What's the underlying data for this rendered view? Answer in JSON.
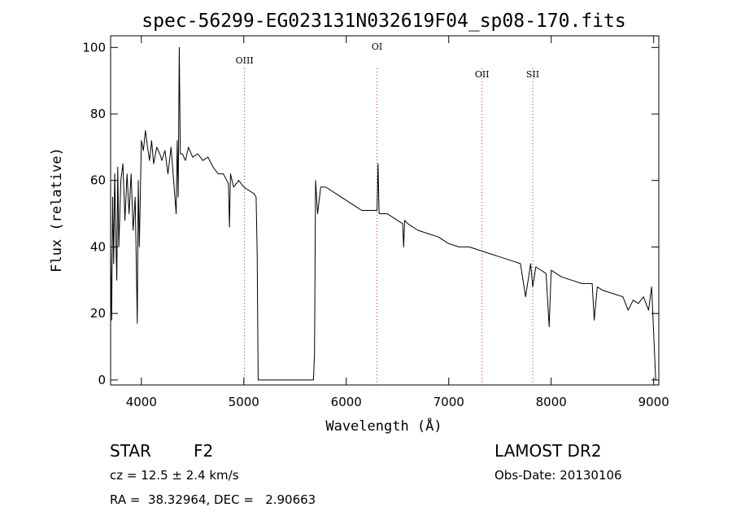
{
  "chart_data": {
    "type": "line",
    "title": "spec-56299-EG023131N032619F04_sp08-170.fits",
    "xlabel": "Wavelength (Å)",
    "ylabel": "Flux (relative)",
    "xlim": [
      3700,
      9050
    ],
    "ylim": [
      -1.5,
      103.5
    ],
    "xticks": [
      4000,
      5000,
      6000,
      7000,
      8000,
      9000
    ],
    "yticks": [
      0,
      20,
      40,
      60,
      80,
      100
    ],
    "grid": false,
    "series": [
      {
        "x": [
          3700,
          3710,
          3720,
          3730,
          3740,
          3750,
          3760,
          3770,
          3780,
          3790,
          3800,
          3820,
          3840,
          3860,
          3880,
          3900,
          3920,
          3940,
          3960,
          3970,
          3980,
          4000,
          4020,
          4040,
          4060,
          4080,
          4100,
          4120,
          4150,
          4180,
          4200,
          4230,
          4260,
          4290,
          4320,
          4340,
          4350,
          4360,
          4370,
          4380,
          4400,
          4430,
          4460,
          4500,
          4550,
          4600,
          4650,
          4700,
          4750,
          4800,
          4850,
          4860,
          4870,
          4900,
          4950,
          5000,
          5050,
          5100,
          5120,
          5130,
          5140,
          5680,
          5690,
          5700,
          5710,
          5720,
          5750,
          5800,
          5850,
          5900,
          5950,
          6000,
          6050,
          6100,
          6150,
          6200,
          6250,
          6300,
          6310,
          6320,
          6350,
          6400,
          6450,
          6500,
          6550,
          6560,
          6570,
          6600,
          6650,
          6700,
          6800,
          6900,
          7000,
          7100,
          7200,
          7300,
          7400,
          7500,
          7600,
          7700,
          7750,
          7800,
          7820,
          7850,
          7900,
          7950,
          7980,
          8000,
          8050,
          8100,
          8200,
          8300,
          8400,
          8420,
          8450,
          8500,
          8600,
          8700,
          8750,
          8800,
          8850,
          8900,
          8950,
          8980,
          9000,
          9020
        ],
        "y": [
          40,
          18,
          55,
          35,
          62,
          45,
          30,
          64,
          40,
          50,
          60,
          65,
          48,
          62,
          50,
          62,
          45,
          55,
          17,
          60,
          40,
          72,
          69,
          75,
          70,
          66,
          72,
          65,
          70,
          68,
          66,
          69,
          62,
          70,
          58,
          50,
          72,
          55,
          100,
          68,
          68,
          66,
          70,
          67,
          68,
          66,
          67,
          64,
          62,
          62,
          59,
          46,
          62,
          58,
          60,
          58,
          57,
          56,
          55,
          38,
          0,
          0,
          8,
          60,
          55,
          50,
          58,
          58,
          57,
          56,
          55,
          54,
          53,
          52,
          51,
          51,
          51,
          51,
          65,
          50,
          50,
          50,
          49,
          48,
          47,
          40,
          48,
          47,
          46,
          45,
          44,
          43,
          41,
          40,
          40,
          39,
          38,
          37,
          36,
          35,
          25,
          35,
          28,
          34,
          33,
          32,
          16,
          33,
          32,
          31,
          30,
          29,
          29,
          18,
          28,
          27,
          26,
          25,
          21,
          24,
          23,
          25,
          21,
          28,
          14,
          0
        ]
      }
    ],
    "annotations": [
      {
        "label": "OIII",
        "x": 5007
      },
      {
        "label": "OI",
        "x": 6300
      },
      {
        "label": "OII",
        "x": 7325
      },
      {
        "label": "SII",
        "x": 7820
      }
    ]
  },
  "info": {
    "object_class": "STAR",
    "subclass": "F2",
    "survey": "LAMOST DR2",
    "cz": "cz = 12.5 ± 2.4 km/s",
    "obs_date": "Obs-Date: 20130106",
    "coords": "RA =  38.32964, DEC =   2.90663"
  }
}
